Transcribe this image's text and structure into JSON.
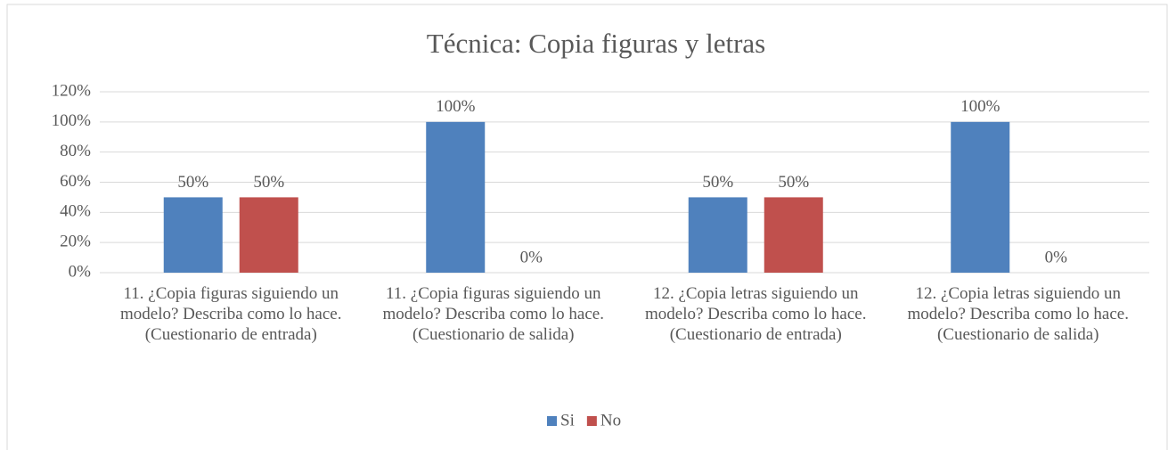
{
  "chart_data": {
    "type": "bar",
    "title": "Técnica: Copia figuras y letras",
    "categories": [
      "11. ¿Copia figuras siguiendo un modelo? Describa como lo hace. (Cuestionario de entrada)",
      "11. ¿Copia figuras siguiendo un modelo? Describa como lo hace. (Cuestionario de salida)",
      "12. ¿Copia letras siguiendo un modelo? Describa como lo hace. (Cuestionario de entrada)",
      "12. ¿Copia letras siguiendo un modelo? Describa como lo hace.  (Cuestionario de salida)"
    ],
    "series": [
      {
        "name": "Si",
        "color": "#4f81bd",
        "values": [
          50,
          100,
          50,
          100
        ],
        "value_labels": [
          "50%",
          "100%",
          "50%",
          "100%"
        ]
      },
      {
        "name": "No",
        "color": "#c0504d",
        "values": [
          50,
          0,
          50,
          0
        ],
        "value_labels": [
          "50%",
          "0%",
          "50%",
          "0%"
        ]
      }
    ],
    "ylim": [
      0,
      120
    ],
    "yticks": [
      {
        "value": 0,
        "label": "0%"
      },
      {
        "value": 20,
        "label": "20%"
      },
      {
        "value": 40,
        "label": "40%"
      },
      {
        "value": 60,
        "label": "60%"
      },
      {
        "value": 80,
        "label": "80%"
      },
      {
        "value": 100,
        "label": "100%"
      },
      {
        "value": 120,
        "label": "120%"
      }
    ],
    "grid": true,
    "legend": "bottom"
  }
}
